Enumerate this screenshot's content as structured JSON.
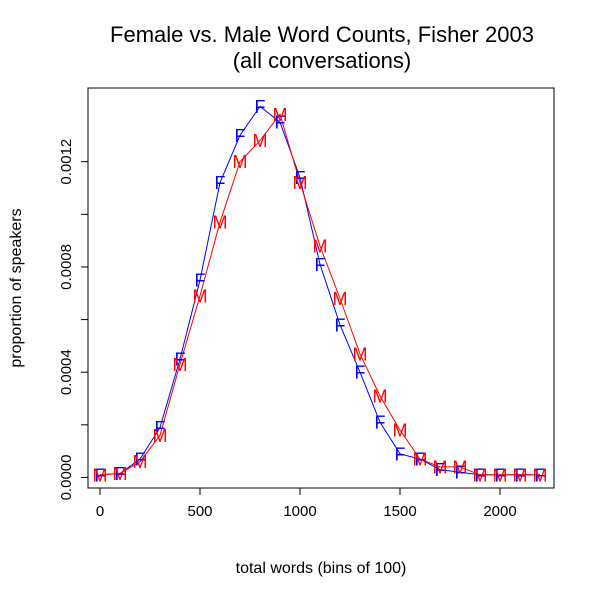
{
  "chart_data": {
    "type": "line",
    "title": "Female vs. Male Word Counts, Fisher 2003",
    "subtitle": "(all conversations)",
    "xlabel": "total words (bins of 100)",
    "ylabel": "proportion of speakers",
    "xlim": [
      -60,
      2270
    ],
    "ylim": [
      -4e-05,
      0.00148
    ],
    "xticks": [
      0,
      500,
      1000,
      1500,
      2000
    ],
    "xtick_labels": [
      "0",
      "500",
      "1000",
      "1500",
      "2000"
    ],
    "yticks": [
      0.0,
      0.0002,
      0.0004,
      0.0006,
      0.0008,
      0.001,
      0.0012
    ],
    "ytick_labels": [
      "0.0000",
      "0.0004",
      "0.0008",
      "0.0012"
    ],
    "grid": false,
    "x": [
      0,
      100,
      200,
      300,
      400,
      500,
      600,
      700,
      800,
      900,
      1000,
      1100,
      1200,
      1300,
      1400,
      1500,
      1600,
      1700,
      1800,
      1900,
      2000,
      2100,
      2200
    ],
    "series": [
      {
        "marker": "F",
        "color": "#0000ff",
        "values": [
          1e-05,
          1.5e-05,
          7e-05,
          0.00019,
          0.00045,
          0.00075,
          0.00112,
          0.0013,
          0.00141,
          0.00135,
          0.00114,
          0.00081,
          0.00058,
          0.0004,
          0.00021,
          9e-05,
          7e-05,
          3e-05,
          2e-05,
          1e-05,
          1e-05,
          1e-05,
          1e-05
        ]
      },
      {
        "marker": "M",
        "color": "#ff0000",
        "values": [
          1e-05,
          1.5e-05,
          6e-05,
          0.00016,
          0.00043,
          0.00069,
          0.00097,
          0.0012,
          0.00128,
          0.00138,
          0.00112,
          0.00088,
          0.00068,
          0.00047,
          0.00031,
          0.00018,
          7e-05,
          4e-05,
          4e-05,
          1e-05,
          1e-05,
          1e-05,
          1e-05
        ]
      }
    ]
  }
}
